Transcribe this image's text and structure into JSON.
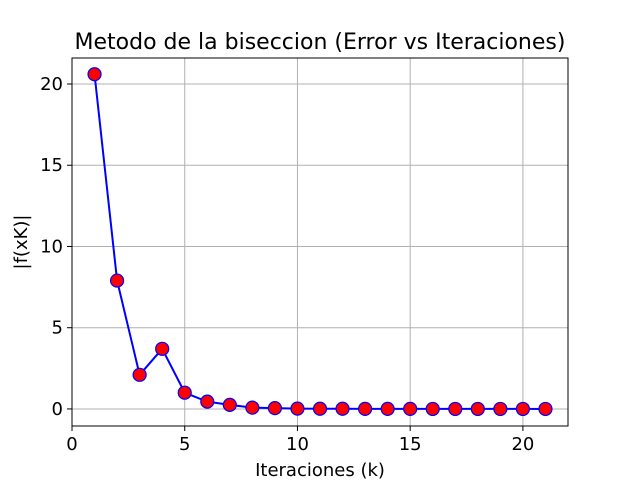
{
  "chart_data": {
    "type": "line",
    "title": "Metodo de la biseccion (Error vs Iteraciones)",
    "xlabel": "Iteraciones (k)",
    "ylabel": "|f(xK)|",
    "xlim": [
      0,
      22
    ],
    "ylim": [
      -1.05,
      21.6
    ],
    "xticks": [
      0,
      5,
      10,
      15,
      20
    ],
    "yticks": [
      0,
      5,
      10,
      15,
      20
    ],
    "grid": true,
    "line_color": "#0000ff",
    "marker_face": "#ff0000",
    "marker_edge": "#0000ff",
    "x": [
      1,
      2,
      3,
      4,
      5,
      6,
      7,
      8,
      9,
      10,
      11,
      12,
      13,
      14,
      15,
      16,
      17,
      18,
      19,
      20,
      21
    ],
    "y": [
      20.6,
      7.9,
      2.1,
      3.7,
      1.0,
      0.45,
      0.25,
      0.08,
      0.05,
      0.02,
      0.01,
      0.01,
      0.005,
      0.003,
      0.002,
      0.001,
      0.001,
      0.0005,
      0.0003,
      0.0002,
      0.0001
    ]
  }
}
